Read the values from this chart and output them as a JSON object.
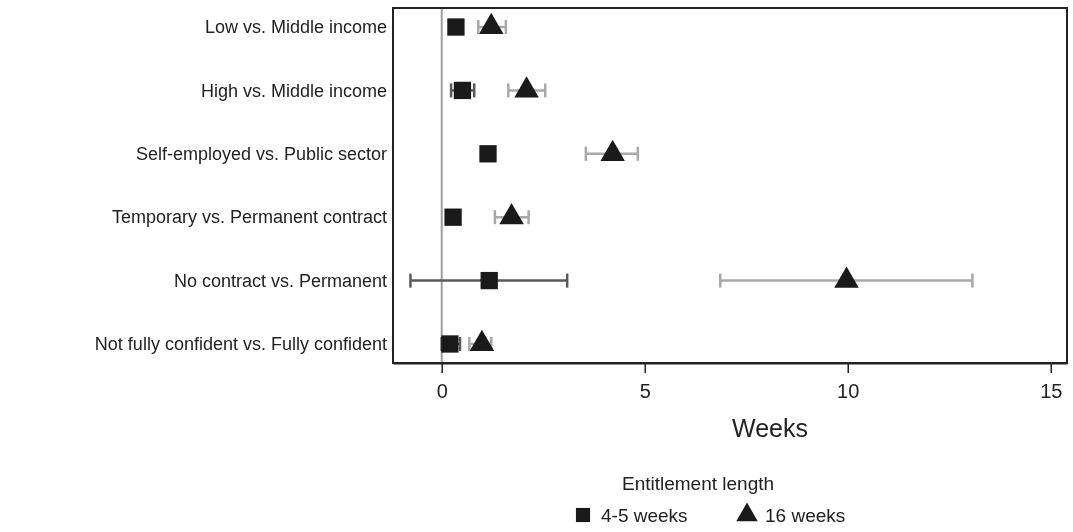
{
  "chart_data": {
    "type": "scatter",
    "orientation": "horizontal",
    "xlabel": "Weeks",
    "legend_title": "Entitlement length",
    "legend": "bottom",
    "categories": [
      "Low vs. Middle income",
      "High vs. Middle income",
      "Self-employed vs. Public sector",
      "Temporary vs. Permanent contract",
      "No contract vs. Permanent",
      "Not fully confident vs. Fully confident"
    ],
    "series": [
      {
        "name": "4-5 weeks",
        "color": "#1a1a1a",
        "marker": "square",
        "values": [
          0.35,
          0.51,
          1.14,
          0.28,
          1.17,
          0.2
        ],
        "errors": [
          null,
          [
            0.23,
            0.8
          ],
          null,
          null,
          [
            -0.77,
            3.09
          ],
          [
            0.0,
            0.45
          ]
        ]
      },
      {
        "name": "16 weeks",
        "color": "#1a1a1a",
        "marker": "triangle",
        "values": [
          1.22,
          2.09,
          4.21,
          1.72,
          9.97,
          0.99
        ],
        "errors": [
          [
            0.9,
            1.58
          ],
          [
            1.64,
            2.55
          ],
          [
            3.55,
            4.83
          ],
          [
            1.31,
            2.14
          ],
          [
            6.86,
            13.07
          ],
          [
            0.68,
            1.22
          ]
        ]
      }
    ],
    "xlim": [
      -1.2,
      15.4
    ],
    "xticks": [
      0,
      5,
      10,
      15
    ],
    "grid": false,
    "ref_lines": [
      {
        "axis": "x",
        "value": 0,
        "color": "#9e9e9e"
      }
    ]
  }
}
